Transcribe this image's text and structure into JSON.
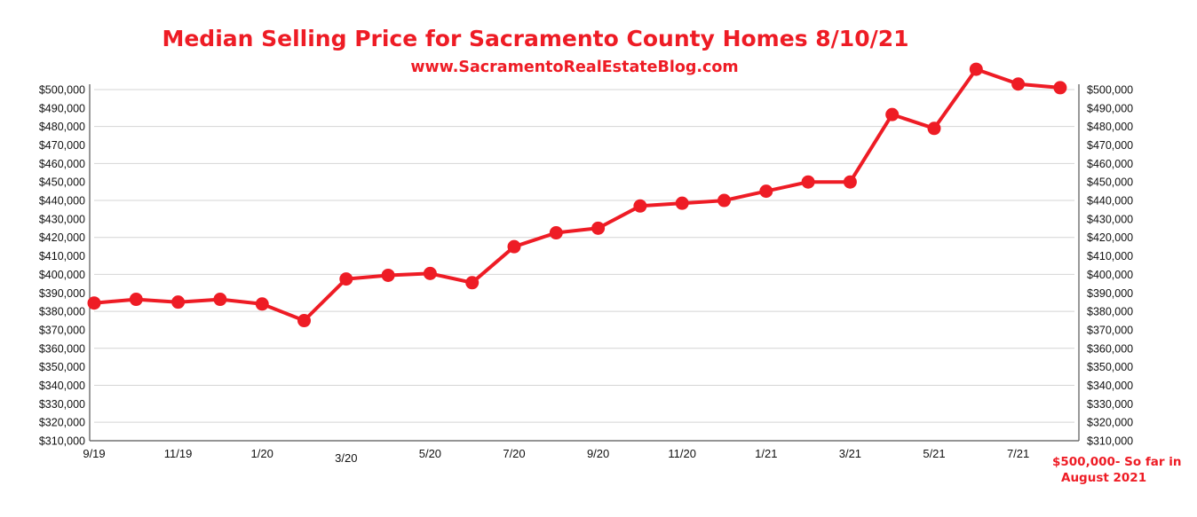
{
  "chart_data": {
    "type": "line",
    "title": "Median Selling Price for Sacramento County Homes 8/10/21",
    "subtitle": "www.SacramentoRealEstateBlog.com",
    "xlabel": "",
    "ylabel": "",
    "ylim": [
      310000,
      500000
    ],
    "yticks": [
      "$310,000",
      "$320,000",
      "$330,000",
      "$340,000",
      "$350,000",
      "$360,000",
      "$370,000",
      "$380,000",
      "$390,000",
      "$400,000",
      "$410,000",
      "$420,000",
      "$430,000",
      "$440,000",
      "$450,000",
      "$460,000",
      "$470,000",
      "$480,000",
      "$490,000",
      "$500,000"
    ],
    "x_labels": [
      {
        "label": "9/19",
        "index": 0
      },
      {
        "label": "11/19",
        "index": 2
      },
      {
        "label": "1/20",
        "index": 4
      },
      {
        "label": "3/20",
        "index": 6
      },
      {
        "label": "5/20",
        "index": 8
      },
      {
        "label": "7/20",
        "index": 10
      },
      {
        "label": "9/20",
        "index": 12
      },
      {
        "label": "11/20",
        "index": 14
      },
      {
        "label": "1/21",
        "index": 16
      },
      {
        "label": "3/21",
        "index": 18
      },
      {
        "label": "5/21",
        "index": 20
      },
      {
        "label": "7/21",
        "index": 22
      }
    ],
    "values": [
      384500,
      386500,
      385000,
      386500,
      384000,
      375000,
      397500,
      399500,
      400500,
      395500,
      415000,
      422500,
      425000,
      437000,
      438500,
      440000,
      445000,
      450000,
      450000,
      486500,
      479000,
      511000,
      503000,
      501000
    ],
    "grid": true,
    "line_color": "#ee1c25",
    "annotation": [
      "$500,000- So far in",
      "August 2021"
    ]
  }
}
